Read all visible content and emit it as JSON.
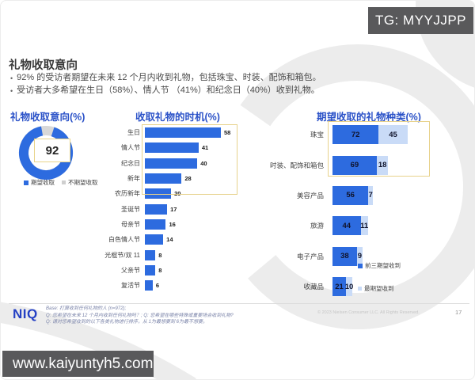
{
  "badge": {
    "text": "TG: MYYJJPP"
  },
  "watermark": {
    "text": "www.kaiyuntyh5.com"
  },
  "header": {
    "title": "礼物收取意向",
    "bullets": [
      "92% 的受访者期望在未来 12 个月内收到礼物，包括珠宝、时装、配饰和箱包。",
      "受访者大多希望在生日（58%）、情人节 （41%）和纪念日（40%）收到礼物。"
    ]
  },
  "colors": {
    "bar_blue": "#2d6bdf",
    "bar_light_blue": "#c9dbf7",
    "title_blue": "#2b52c8",
    "donut_gray": "#d8d8d8",
    "highlight_border": "#e7d28c",
    "badge_gray": "#59595b"
  },
  "chart_data": [
    {
      "type": "donut",
      "title": "礼物收取意向(%)",
      "value": 92,
      "remainder": 8,
      "center_label": "92",
      "legend": [
        "期望收取",
        "不期望收取"
      ]
    },
    {
      "type": "bar",
      "title": "收取礼物的时机(%)",
      "categories": [
        "生日",
        "情人节",
        "纪念日",
        "新年",
        "农历新年",
        "圣诞节",
        "母亲节",
        "白色情人节",
        "光棍节/双 11",
        "父亲节",
        "复活节"
      ],
      "values": [
        58,
        41,
        40,
        28,
        20,
        17,
        16,
        14,
        8,
        8,
        6
      ],
      "highlight_top": 3,
      "xlabel": "",
      "ylabel": "",
      "xlim": [
        0,
        60
      ],
      "grid": false
    },
    {
      "type": "stacked_bar",
      "title": "期望收取的礼物种类(%)",
      "categories": [
        "珠宝",
        "时装、配饰和箱包",
        "美容产品",
        "旅游",
        "电子产品",
        "收藏品"
      ],
      "series": [
        {
          "name": "前三期望收到",
          "values": [
            72,
            69,
            56,
            44,
            38,
            21
          ]
        },
        {
          "name": "最期望收到",
          "values": [
            45,
            18,
            7,
            11,
            9,
            10
          ]
        }
      ],
      "highlight_top": 2,
      "legend": [
        "前三期望收到",
        "最期望收到"
      ],
      "xlim": [
        0,
        120
      ],
      "grid": false
    }
  ],
  "footer": {
    "logo": "NIQ",
    "notes": [
      "Base: 打算收到任何礼物的人 (n=972);",
      "Q: 您希望在未来 12 个月内收到任何礼物吗？; Q: 您希望在哪些特殊或重要场合收到礼物?",
      "Q: 请对您希望收到的以下各类礼物进行排序，从 1为最想要到 6为最不想要。"
    ],
    "copyright": "© 2023 Nielsen Consumer LLC. All Rights Reserved.",
    "page": "17"
  }
}
